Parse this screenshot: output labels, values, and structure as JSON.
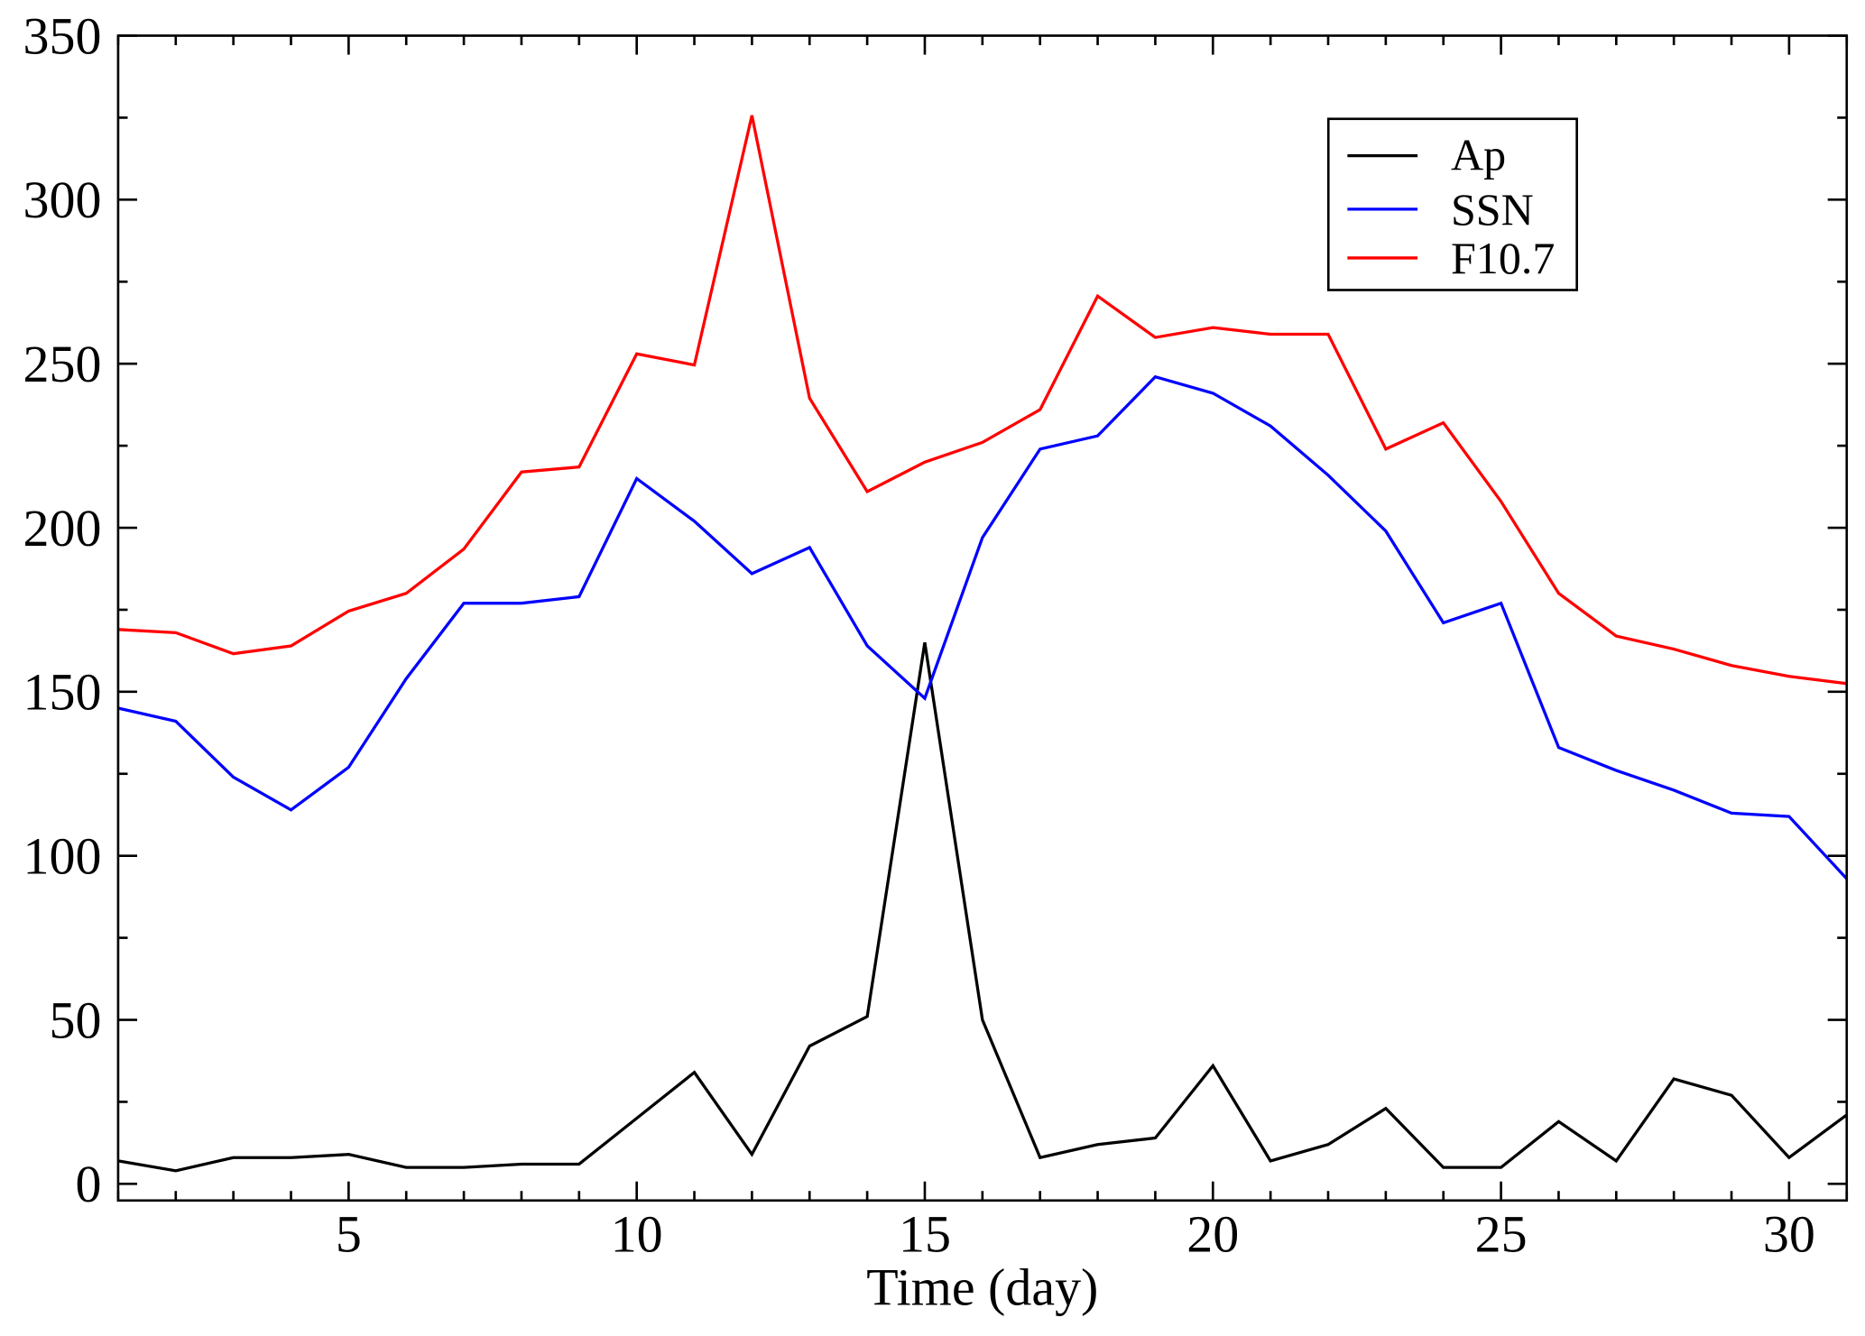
{
  "chart_data": {
    "type": "line",
    "title": "",
    "xlabel": "Time (day)",
    "ylabel": "",
    "xlim": [
      1,
      31
    ],
    "ylim": [
      -5,
      350
    ],
    "xticks": [
      5,
      10,
      15,
      20,
      25,
      30
    ],
    "yticks": [
      0,
      50,
      100,
      150,
      200,
      250,
      300,
      350
    ],
    "grid": false,
    "legend_position": "top-right",
    "x": [
      1,
      2,
      3,
      4,
      5,
      6,
      7,
      8,
      9,
      10,
      11,
      12,
      13,
      14,
      15,
      16,
      17,
      18,
      19,
      20,
      21,
      22,
      23,
      24,
      25,
      26,
      27,
      28,
      29,
      30,
      31
    ],
    "series": [
      {
        "name": "Ap",
        "color": "#000000",
        "values": [
          7,
          4,
          8,
          8,
          9,
          5,
          5,
          6,
          6,
          20,
          34,
          9,
          42,
          51,
          165,
          50,
          8,
          12,
          14,
          36,
          7,
          12,
          23,
          5,
          5,
          19,
          7,
          32,
          27,
          8,
          21
        ]
      },
      {
        "name": "SSN",
        "color": "#0000ff",
        "values": [
          145,
          141,
          124,
          114,
          127,
          154,
          177,
          177,
          179,
          215,
          202,
          186,
          194,
          164,
          148,
          197,
          224,
          228,
          246,
          241,
          231,
          216,
          199,
          171,
          177,
          133,
          126,
          120,
          113,
          112,
          93
        ]
      },
      {
        "name": "F10.7",
        "color": "#ff0000",
        "values": [
          169,
          168,
          161.6,
          164,
          174.6,
          180,
          193.5,
          217,
          218.5,
          253,
          249.6,
          325.7,
          239.5,
          211,
          220,
          226,
          236,
          270.6,
          258,
          261,
          259,
          259,
          224,
          232,
          208,
          180,
          167,
          163,
          158,
          154.7,
          152.5
        ]
      }
    ]
  }
}
